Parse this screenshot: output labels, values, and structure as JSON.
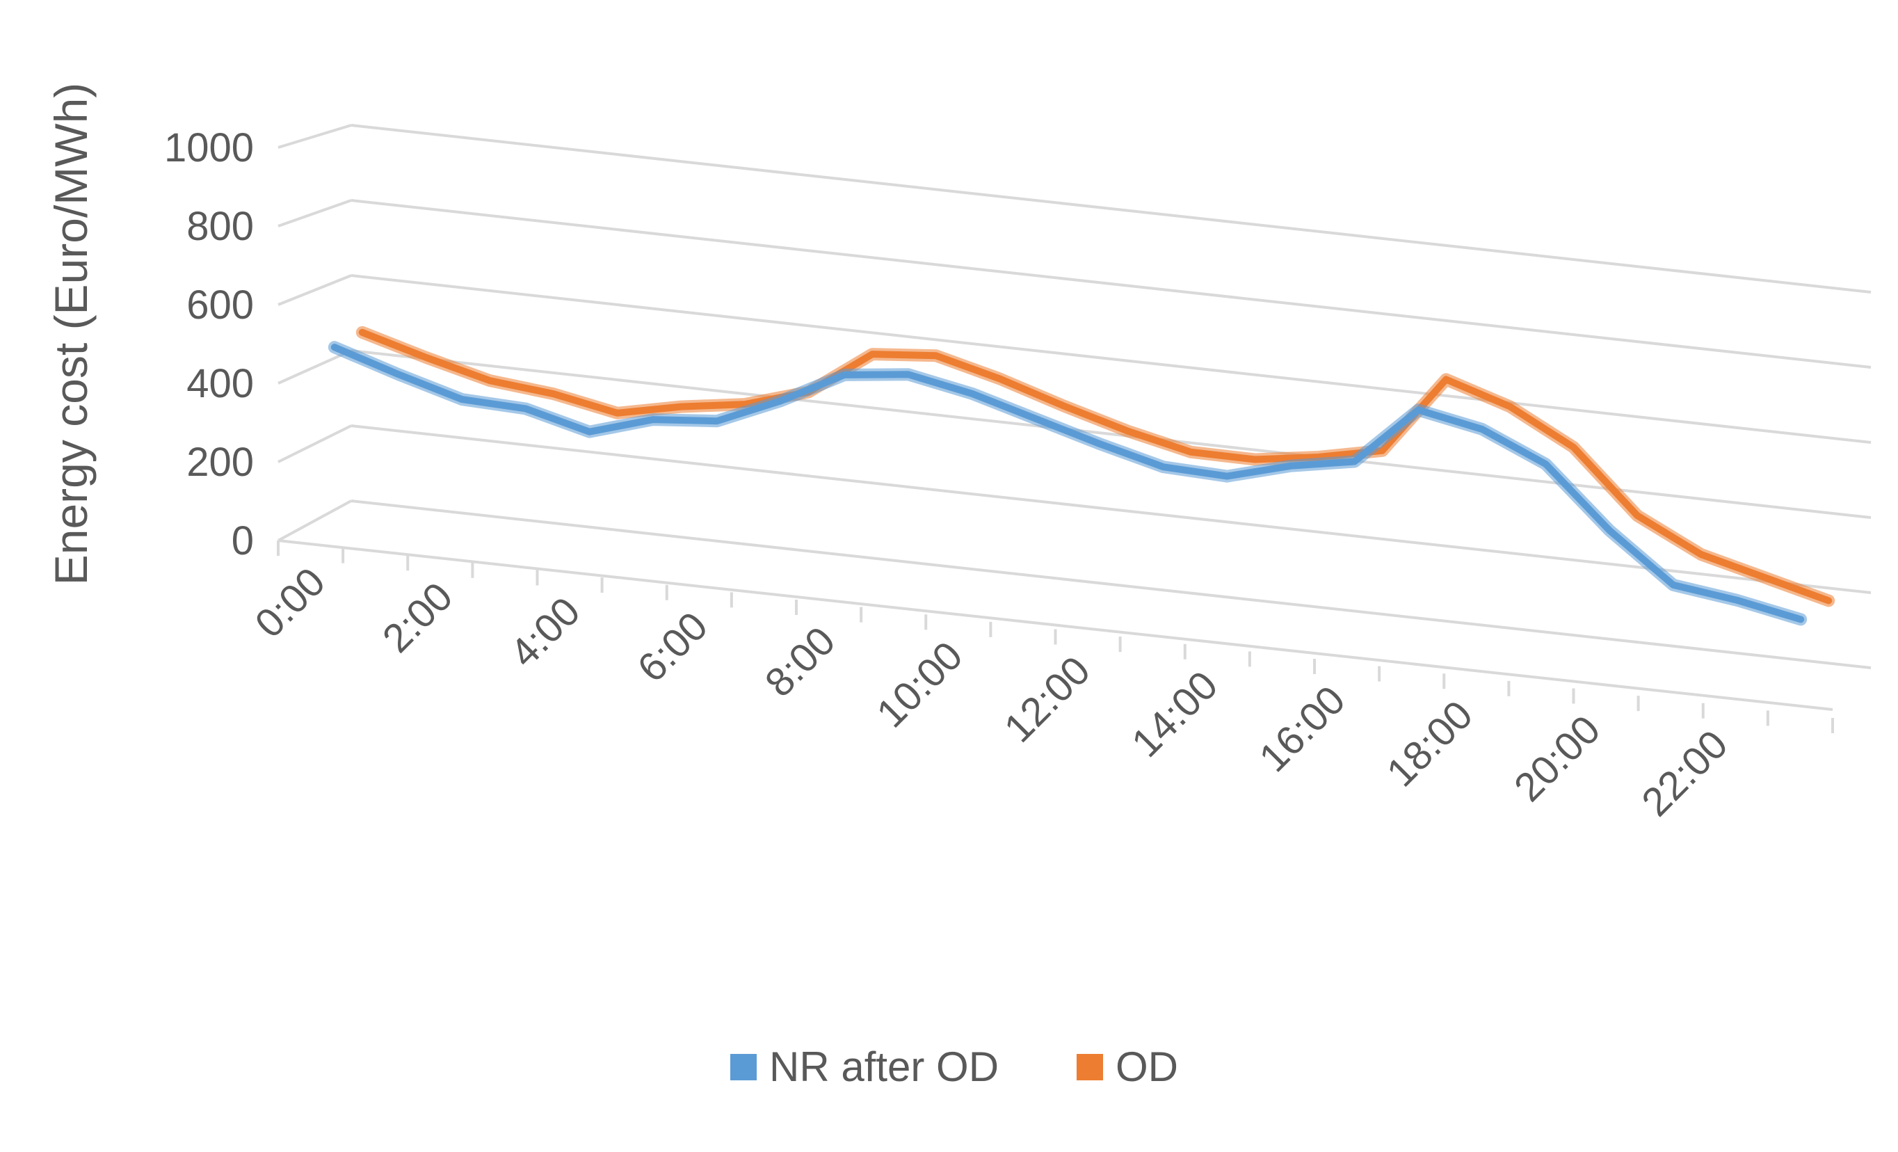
{
  "chart_data": {
    "type": "line",
    "title": "",
    "xlabel": "",
    "ylabel": "Energy cost (Euro/MWh)",
    "ylim": [
      0,
      1000
    ],
    "yticks": [
      "0",
      "200",
      "400",
      "600",
      "800",
      "1000"
    ],
    "x_tick_labels": [
      "0:00",
      "2:00",
      "4:00",
      "6:00",
      "8:00",
      "10:00",
      "12:00",
      "14:00",
      "16:00",
      "18:00",
      "20:00",
      "22:00"
    ],
    "categories": [
      "0:00",
      "1:00",
      "2:00",
      "3:00",
      "4:00",
      "5:00",
      "6:00",
      "7:00",
      "8:00",
      "9:00",
      "10:00",
      "11:00",
      "12:00",
      "13:00",
      "14:00",
      "15:00",
      "16:00",
      "17:00",
      "18:00",
      "19:00",
      "20:00",
      "21:00",
      "22:00",
      "23:00"
    ],
    "series": [
      {
        "name": "NR after OD",
        "color": "#5B9BD5",
        "values": [
          480,
          430,
          385,
          380,
          340,
          390,
          405,
          475,
          560,
          580,
          550,
          505,
          460,
          420,
          415,
          460,
          490,
          640,
          610,
          540,
          390,
          270,
          250,
          220
        ]
      },
      {
        "name": "OD",
        "color": "#ED7D31",
        "values": [
          500,
          455,
          415,
          400,
          370,
          405,
          430,
          480,
          595,
          610,
          570,
          520,
          475,
          440,
          440,
          465,
          500,
          700,
          650,
          565,
          410,
          330,
          290,
          250
        ]
      }
    ],
    "legend": {
      "position": "bottom",
      "items": [
        "NR after OD",
        "OD"
      ]
    },
    "grid": true,
    "style": "3d-perspective-line"
  }
}
